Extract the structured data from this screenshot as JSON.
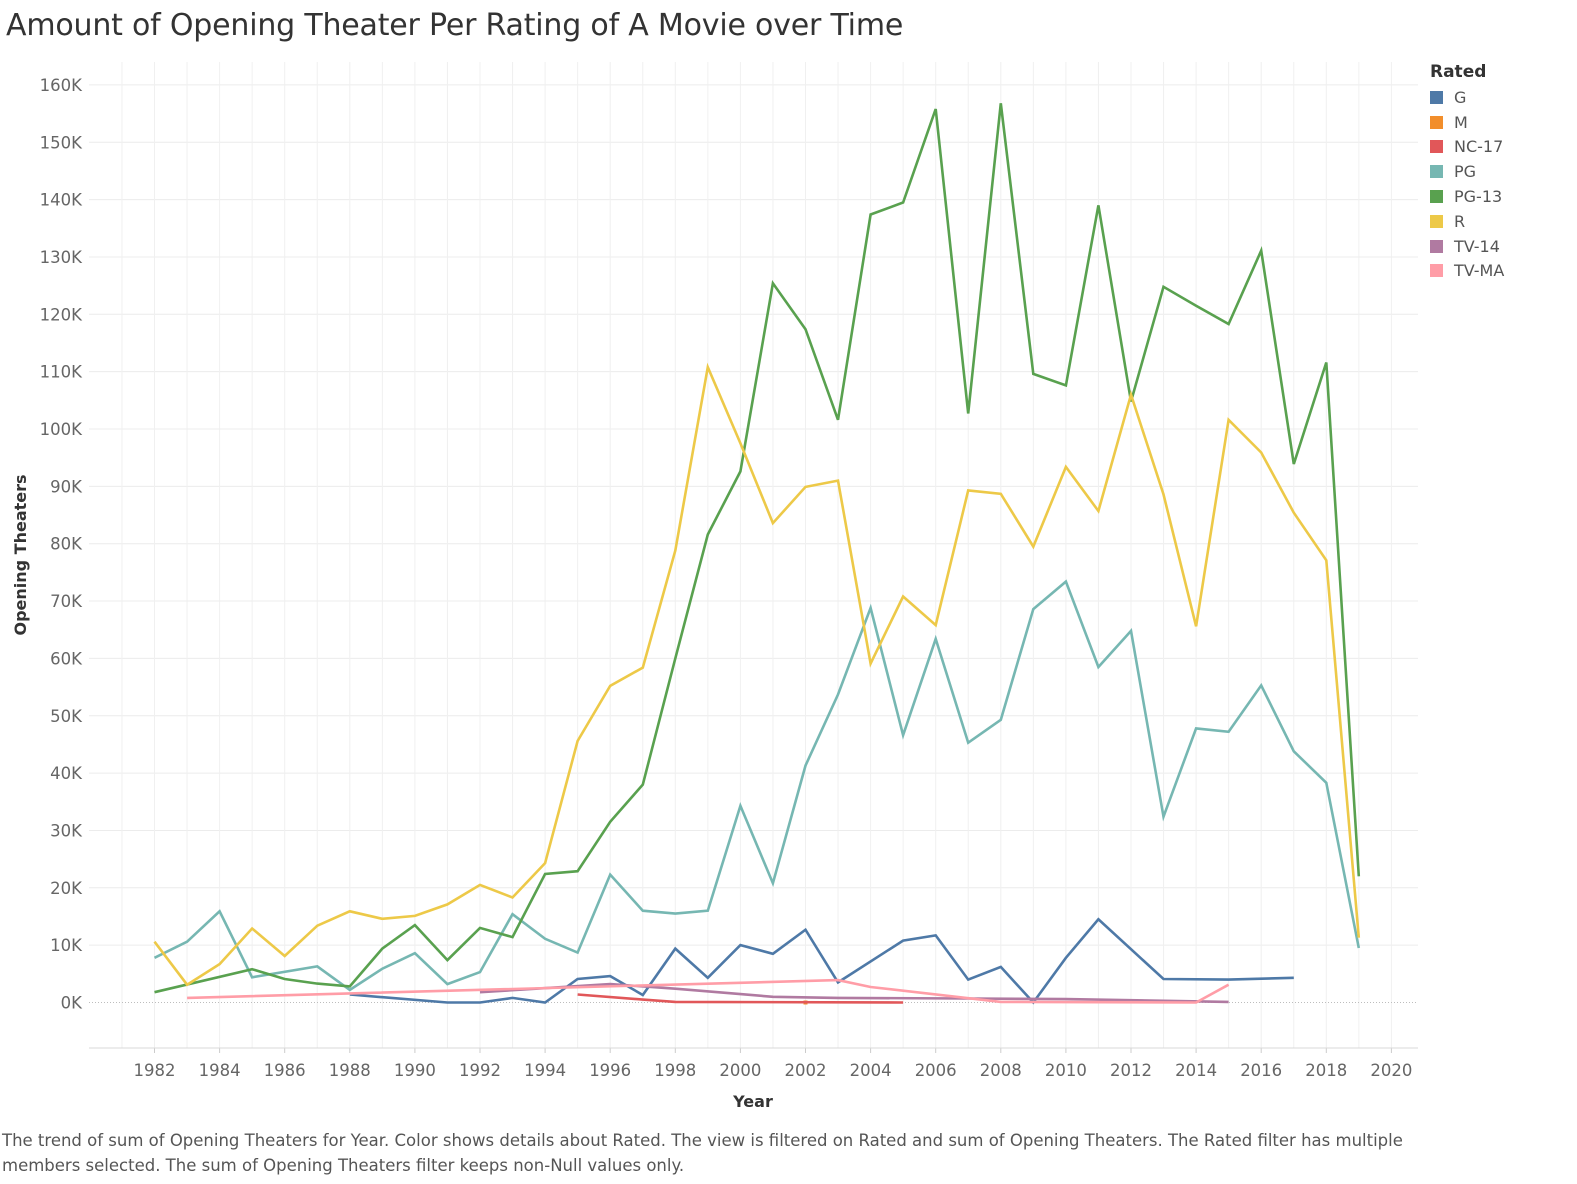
{
  "title": "Amount of Opening Theater Per Rating of A Movie over Time",
  "caption": "The trend of sum of Opening Theaters for Year.  Color shows details about Rated. The view is filtered on Rated and sum of Opening Theaters. The Rated filter has multiple members selected. The sum of Opening Theaters filter keeps non-Null values only.",
  "legend": {
    "title": "Rated",
    "items": [
      {
        "label": "G",
        "color": "#4e79a7"
      },
      {
        "label": "M",
        "color": "#f28e2b"
      },
      {
        "label": "NC-17",
        "color": "#e15759"
      },
      {
        "label": "PG",
        "color": "#76b7b2"
      },
      {
        "label": "PG-13",
        "color": "#59a14f"
      },
      {
        "label": "R",
        "color": "#edc948"
      },
      {
        "label": "TV-14",
        "color": "#b07aa1"
      },
      {
        "label": "TV-MA",
        "color": "#ff9da7"
      }
    ]
  },
  "chart_data": {
    "type": "line",
    "title": "Amount of Opening Theater Per Rating of A Movie over Time",
    "xlabel": "Year",
    "ylabel": "Opening Theaters",
    "xlim": [
      1980,
      2021
    ],
    "ylim": [
      -8000,
      164000
    ],
    "x_ticks": [
      1982,
      1984,
      1986,
      1988,
      1990,
      1992,
      1994,
      1996,
      1998,
      2000,
      2002,
      2004,
      2006,
      2008,
      2010,
      2012,
      2014,
      2016,
      2018,
      2020
    ],
    "y_ticks": [
      0,
      10000,
      20000,
      30000,
      40000,
      50000,
      60000,
      70000,
      80000,
      90000,
      100000,
      110000,
      120000,
      130000,
      140000,
      150000,
      160000
    ],
    "y_tick_labels": [
      "0K",
      "10K",
      "20K",
      "30K",
      "40K",
      "50K",
      "60K",
      "70K",
      "80K",
      "90K",
      "100K",
      "110K",
      "120K",
      "130K",
      "140K",
      "150K",
      "160K"
    ],
    "grid": true,
    "legend_position": "top-right",
    "series": [
      {
        "name": "G",
        "color": "#4e79a7",
        "points": [
          [
            1988,
            1400
          ],
          [
            1991,
            0
          ],
          [
            1992,
            0
          ],
          [
            1993,
            800
          ],
          [
            1994,
            0
          ],
          [
            1995,
            4100
          ],
          [
            1996,
            4600
          ],
          [
            1997,
            1300
          ],
          [
            1998,
            9400
          ],
          [
            1999,
            4300
          ],
          [
            2000,
            10000
          ],
          [
            2001,
            8500
          ],
          [
            2002,
            12700
          ],
          [
            2003,
            3500
          ],
          [
            2005,
            10800
          ],
          [
            2006,
            11700
          ],
          [
            2007,
            4000
          ],
          [
            2008,
            6200
          ],
          [
            2009,
            0
          ],
          [
            2010,
            7800
          ],
          [
            2011,
            14500
          ],
          [
            2013,
            4100
          ],
          [
            2015,
            4000
          ],
          [
            2017,
            4300
          ]
        ]
      },
      {
        "name": "M",
        "color": "#f28e2b",
        "points": [
          [
            2002,
            0
          ]
        ]
      },
      {
        "name": "NC-17",
        "color": "#e15759",
        "points": [
          [
            1995,
            1400
          ],
          [
            1997,
            500
          ],
          [
            1998,
            100
          ],
          [
            2005,
            0
          ]
        ]
      },
      {
        "name": "PG",
        "color": "#76b7b2",
        "points": [
          [
            1982,
            7800
          ],
          [
            1983,
            10600
          ],
          [
            1984,
            15900
          ],
          [
            1985,
            4400
          ],
          [
            1987,
            6300
          ],
          [
            1988,
            2200
          ],
          [
            1989,
            5900
          ],
          [
            1990,
            8600
          ],
          [
            1991,
            3200
          ],
          [
            1992,
            5300
          ],
          [
            1993,
            15400
          ],
          [
            1994,
            11100
          ],
          [
            1995,
            8700
          ],
          [
            1996,
            22300
          ],
          [
            1997,
            16000
          ],
          [
            1998,
            15500
          ],
          [
            1999,
            16000
          ],
          [
            2000,
            34300
          ],
          [
            2001,
            20800
          ],
          [
            2002,
            41300
          ],
          [
            2003,
            53700
          ],
          [
            2004,
            68800
          ],
          [
            2005,
            46600
          ],
          [
            2006,
            63400
          ],
          [
            2007,
            45300
          ],
          [
            2008,
            49300
          ],
          [
            2009,
            68600
          ],
          [
            2010,
            73400
          ],
          [
            2011,
            58500
          ],
          [
            2012,
            64800
          ],
          [
            2013,
            32400
          ],
          [
            2014,
            47800
          ],
          [
            2015,
            47200
          ],
          [
            2016,
            55300
          ],
          [
            2017,
            43800
          ],
          [
            2018,
            38300
          ],
          [
            2019,
            9500
          ]
        ]
      },
      {
        "name": "PG-13",
        "color": "#59a14f",
        "points": [
          [
            1982,
            1800
          ],
          [
            1985,
            5800
          ],
          [
            1986,
            4100
          ],
          [
            1987,
            3300
          ],
          [
            1988,
            2800
          ],
          [
            1989,
            9400
          ],
          [
            1990,
            13500
          ],
          [
            1991,
            7400
          ],
          [
            1992,
            13000
          ],
          [
            1993,
            11400
          ],
          [
            1994,
            22400
          ],
          [
            1995,
            22900
          ],
          [
            1996,
            31500
          ],
          [
            1997,
            38000
          ],
          [
            1998,
            60000
          ],
          [
            1999,
            81600
          ],
          [
            2000,
            92600
          ],
          [
            2001,
            125400
          ],
          [
            2002,
            117400
          ],
          [
            2003,
            101600
          ],
          [
            2004,
            137400
          ],
          [
            2005,
            139500
          ],
          [
            2006,
            155800
          ],
          [
            2007,
            102700
          ],
          [
            2008,
            156800
          ],
          [
            2009,
            109600
          ],
          [
            2010,
            107600
          ],
          [
            2011,
            139000
          ],
          [
            2012,
            104800
          ],
          [
            2013,
            124800
          ],
          [
            2014,
            121500
          ],
          [
            2015,
            118300
          ],
          [
            2016,
            131100
          ],
          [
            2017,
            93900
          ],
          [
            2018,
            111600
          ],
          [
            2019,
            22000
          ]
        ]
      },
      {
        "name": "R",
        "color": "#edc948",
        "points": [
          [
            1982,
            10600
          ],
          [
            1983,
            3100
          ],
          [
            1984,
            6700
          ],
          [
            1985,
            12900
          ],
          [
            1986,
            8100
          ],
          [
            1987,
            13400
          ],
          [
            1988,
            15900
          ],
          [
            1989,
            14600
          ],
          [
            1990,
            15100
          ],
          [
            1991,
            17100
          ],
          [
            1992,
            20500
          ],
          [
            1993,
            18300
          ],
          [
            1994,
            24300
          ],
          [
            1995,
            45600
          ],
          [
            1996,
            55200
          ],
          [
            1997,
            58400
          ],
          [
            1998,
            78800
          ],
          [
            1999,
            110800
          ],
          [
            2000,
            97500
          ],
          [
            2001,
            83600
          ],
          [
            2002,
            89900
          ],
          [
            2003,
            91000
          ],
          [
            2004,
            59100
          ],
          [
            2005,
            70800
          ],
          [
            2006,
            65800
          ],
          [
            2007,
            89300
          ],
          [
            2008,
            88700
          ],
          [
            2009,
            79500
          ],
          [
            2010,
            93400
          ],
          [
            2011,
            85700
          ],
          [
            2012,
            106000
          ],
          [
            2013,
            88600
          ],
          [
            2014,
            65600
          ],
          [
            2015,
            101600
          ],
          [
            2016,
            95900
          ],
          [
            2017,
            85400
          ],
          [
            2018,
            77100
          ],
          [
            2019,
            11300
          ]
        ]
      },
      {
        "name": "TV-14",
        "color": "#b07aa1",
        "points": [
          [
            1992,
            1800
          ],
          [
            1996,
            3200
          ],
          [
            1998,
            2400
          ],
          [
            2001,
            1000
          ],
          [
            2003,
            800
          ],
          [
            2007,
            700
          ],
          [
            2010,
            600
          ],
          [
            2015,
            100
          ]
        ]
      },
      {
        "name": "TV-MA",
        "color": "#ff9da7",
        "points": [
          [
            1983,
            800
          ],
          [
            2003,
            3900
          ],
          [
            2004,
            2700
          ],
          [
            2008,
            100
          ],
          [
            2014,
            0
          ],
          [
            2015,
            3100
          ]
        ]
      }
    ]
  }
}
